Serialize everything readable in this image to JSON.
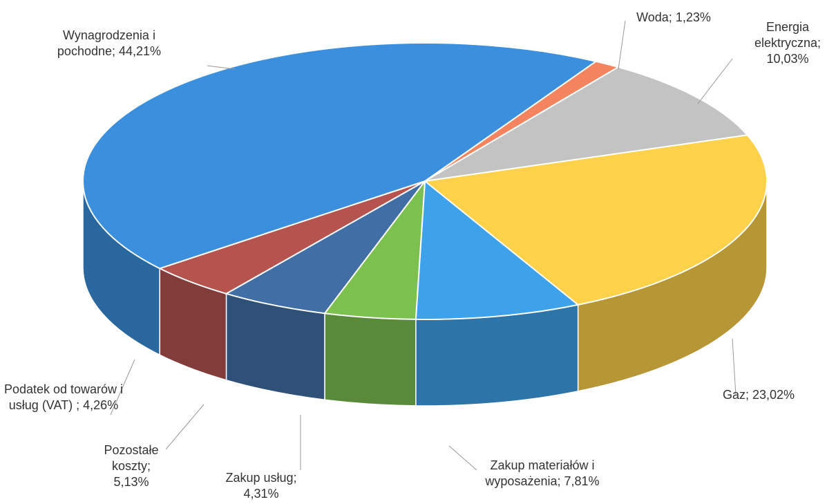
{
  "chart_data": {
    "type": "pie3d",
    "categories": [
      "Woda;",
      "Energia elektryczna;",
      "Gaz;",
      "Zakup materiałów i wyposażenia;",
      "Zakup usług;",
      "Pozostałe koszty;",
      "Podatek od towarów i usług (VAT) ;",
      "Wynagrodzenia i pochodne;"
    ],
    "values": [
      1.23,
      10.03,
      23.02,
      7.81,
      4.31,
      5.13,
      4.26,
      44.21
    ],
    "value_labels": [
      "1,23%",
      "10,03%",
      "23,02%",
      "7,81%",
      "4,31%",
      "5,13%",
      "4,26%",
      "44,21%"
    ],
    "colors": [
      "#f4845f",
      "#c3c3c3",
      "#fdd14a",
      "#3ea2ea",
      "#7cc04f",
      "#416fa5",
      "#b5544f",
      "#3b8fdc"
    ]
  }
}
